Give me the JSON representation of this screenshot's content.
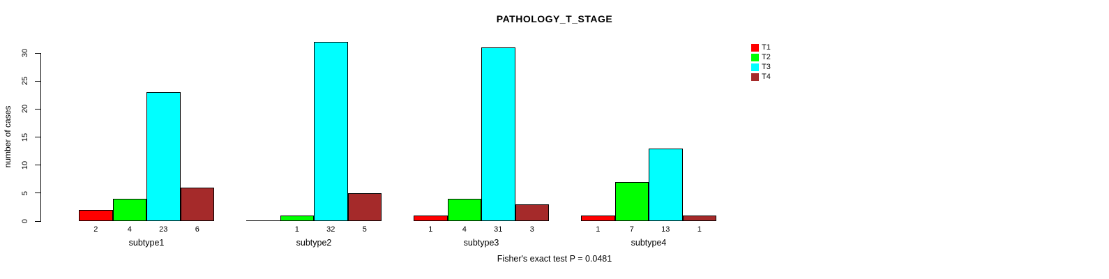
{
  "chart_data": {
    "type": "bar",
    "title": "PATHOLOGY_T_STAGE",
    "xlabel": "",
    "ylabel": "number of cases",
    "categories": [
      "subtype1",
      "subtype2",
      "subtype3",
      "subtype4"
    ],
    "series": [
      {
        "name": "T1",
        "color": "#FF0000",
        "values": [
          2,
          0,
          1,
          1
        ]
      },
      {
        "name": "T2",
        "color": "#00FF00",
        "values": [
          4,
          1,
          4,
          7
        ]
      },
      {
        "name": "T3",
        "color": "#00FFFF",
        "values": [
          23,
          32,
          31,
          13
        ]
      },
      {
        "name": "T4",
        "color": "#A52A2A",
        "values": [
          6,
          5,
          3,
          1
        ]
      }
    ],
    "yticks": [
      0,
      5,
      10,
      15,
      20,
      25,
      30
    ],
    "ylim": [
      0,
      30
    ],
    "bar_value_labels_shown": true,
    "zero_values_unlabeled": true,
    "legend_position": "top-right",
    "grid": false,
    "background": "#FFFFFF"
  },
  "footer": {
    "note": "Fisher's exact test P = 0.0481"
  }
}
